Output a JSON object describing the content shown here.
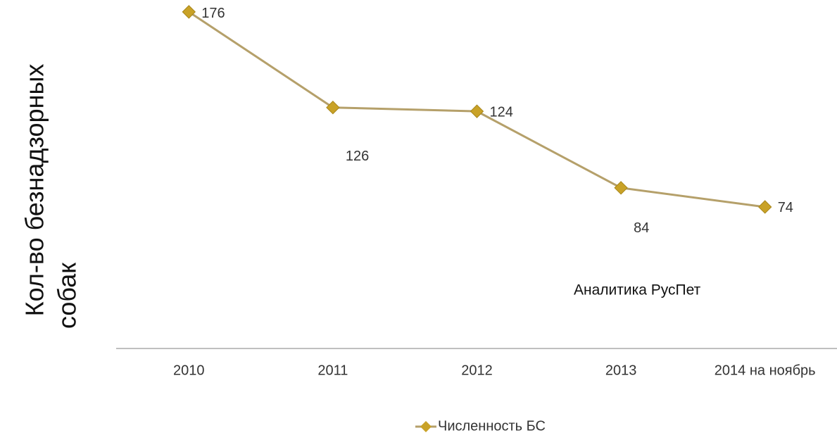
{
  "chart_data": {
    "type": "line",
    "ylabel": [
      "Кол-во безнадзорных",
      "собак"
    ],
    "annotation": "Аналитика РусПет",
    "categories": [
      "2010",
      "2011",
      "2012",
      "2013",
      "2014 на ноябрь"
    ],
    "series": [
      {
        "name": "Численность БС",
        "color": "#c9a227",
        "line_color": "#b5a06a",
        "values": [
          176,
          126,
          124,
          84,
          74
        ]
      }
    ],
    "ylim": [
      0,
      180
    ],
    "legend": "bottom"
  }
}
